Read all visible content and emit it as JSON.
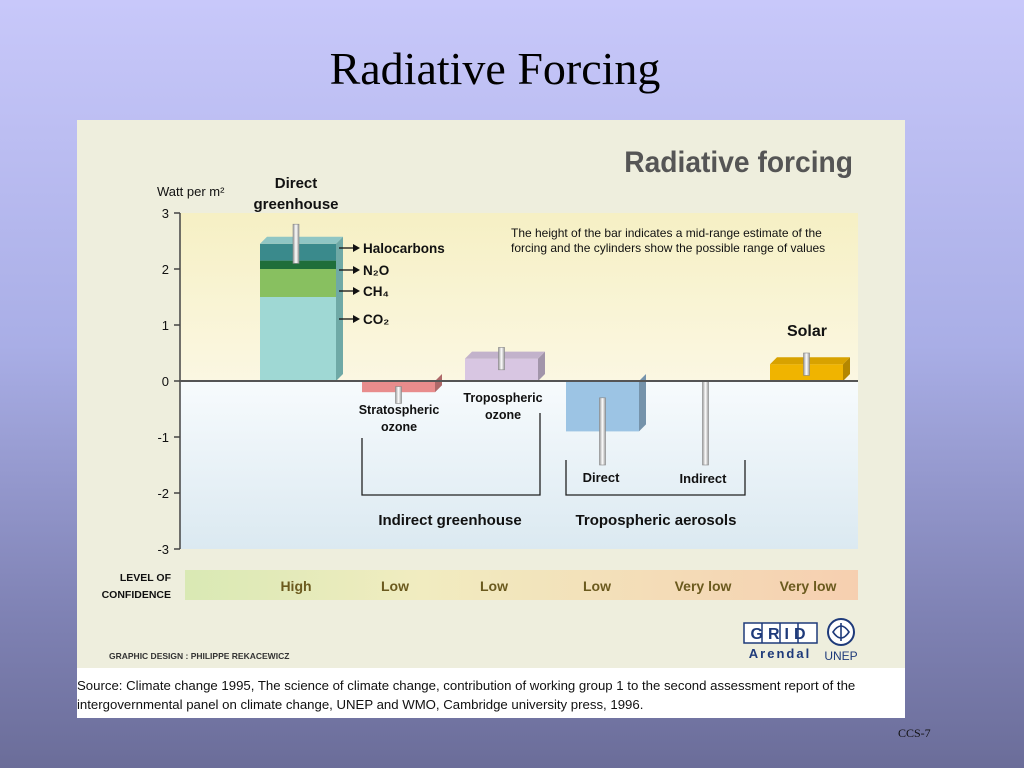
{
  "slide": {
    "title": "Radiative Forcing",
    "slide_number": "CCS-7"
  },
  "source_text": "Source: Climate change 1995, The science of climate change, contribution of working group 1 to the second assessment report of the intergovernmental panel on climate change, UNEP and WMO, Cambridge university press, 1996.",
  "credits": {
    "design": "GRAPHIC DESIGN : PHILIPPE REKACEWICZ",
    "grid_logo": "GRID",
    "arendal": "Arendal",
    "unep": "UNEP"
  },
  "chart_data": {
    "type": "bar",
    "title": "Radiative forcing",
    "ylabel": "Watt per m²",
    "ylim": [
      -3,
      3
    ],
    "yticks": [
      3,
      2,
      1,
      0,
      -1,
      -2,
      -3
    ],
    "note_lines": [
      "The height of the bar indicates a mid-range estimate of the",
      "forcing and the cylinders show the possible range of values"
    ],
    "categories": [
      "Direct greenhouse",
      "Stratospheric ozone",
      "Tropospheric ozone",
      "Direct",
      "Indirect",
      "Solar"
    ],
    "category_labels": {
      "direct_greenhouse": [
        "Direct",
        "greenhouse"
      ],
      "stratospheric_ozone": [
        "Stratospheric",
        "ozone"
      ],
      "tropospheric_ozone": [
        "Tropospheric",
        "ozone"
      ],
      "direct": "Direct",
      "indirect": "Indirect",
      "solar": "Solar"
    },
    "greenhouse_stack": [
      {
        "name": "CO₂",
        "value": 1.5,
        "color": "#9fd8d4"
      },
      {
        "name": "CH₄",
        "value": 0.5,
        "color": "#88c060"
      },
      {
        "name": "N₂O",
        "value": 0.15,
        "color": "#1f6e3a"
      },
      {
        "name": "Halocarbons",
        "value": 0.3,
        "color": "#3a8a8c"
      }
    ],
    "greenhouse_total": 2.45,
    "greenhouse_range": [
      2.1,
      2.8
    ],
    "bars": [
      {
        "name": "Stratospheric ozone",
        "value": -0.2,
        "range": [
          -0.4,
          -0.1
        ],
        "color": "#e88c8c"
      },
      {
        "name": "Tropospheric ozone",
        "value": 0.4,
        "range": [
          0.2,
          0.6
        ],
        "color": "#d8c6e2"
      },
      {
        "name": "Direct",
        "value": -0.9,
        "range": [
          -1.5,
          -0.3
        ],
        "color": "#9cc4e4"
      },
      {
        "name": "Indirect",
        "value": 0,
        "range": [
          -1.5,
          0
        ],
        "color": "#9cc4e4"
      },
      {
        "name": "Solar",
        "value": 0.3,
        "range": [
          0.1,
          0.5
        ],
        "color": "#f0b400"
      }
    ],
    "groups": [
      {
        "name": "Indirect greenhouse",
        "members": [
          "Stratospheric ozone",
          "Tropospheric ozone"
        ]
      },
      {
        "name": "Tropospheric aerosols",
        "members": [
          "Direct",
          "Indirect"
        ]
      }
    ],
    "confidence": {
      "label_lines": [
        "LEVEL OF",
        "CONFIDENCE"
      ],
      "levels": [
        "High",
        "Low",
        "Low",
        "Low",
        "Very low",
        "Very low"
      ]
    }
  }
}
